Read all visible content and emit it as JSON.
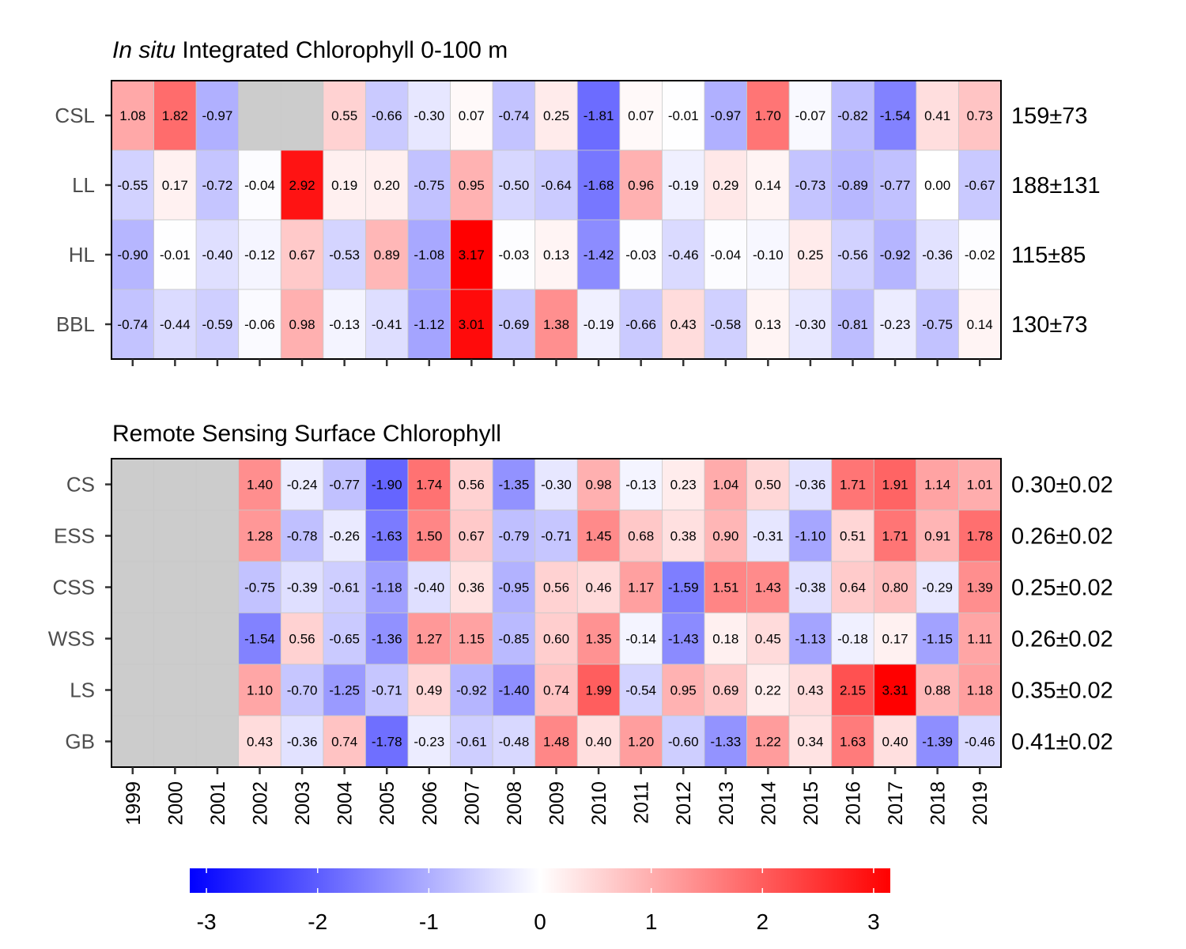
{
  "chart_data": [
    {
      "type": "heatmap",
      "title_italic": "In situ",
      "title_rest": " Integrated Chlorophyll 0-100 m",
      "x": [
        "1999",
        "2000",
        "2001",
        "2002",
        "2003",
        "2004",
        "2005",
        "2006",
        "2007",
        "2008",
        "2009",
        "2010",
        "2011",
        "2012",
        "2013",
        "2014",
        "2015",
        "2016",
        "2017",
        "2018",
        "2019"
      ],
      "rows": [
        {
          "name": "CSL",
          "mean": "159±73",
          "values": [
            1.08,
            1.82,
            -0.97,
            null,
            null,
            0.55,
            -0.66,
            -0.3,
            0.07,
            -0.74,
            0.25,
            -1.81,
            0.07,
            -0.01,
            -0.97,
            1.7,
            -0.07,
            -0.82,
            -1.54,
            0.41,
            0.73
          ]
        },
        {
          "name": "LL",
          "mean": "188±131",
          "values": [
            -0.55,
            0.17,
            -0.72,
            -0.04,
            2.92,
            0.19,
            0.2,
            -0.75,
            0.95,
            -0.5,
            -0.64,
            -1.68,
            0.96,
            -0.19,
            0.29,
            0.14,
            -0.73,
            -0.89,
            -0.77,
            0.0,
            -0.67
          ]
        },
        {
          "name": "HL",
          "mean": "115±85",
          "values": [
            -0.9,
            -0.01,
            -0.4,
            -0.12,
            0.67,
            -0.53,
            0.89,
            -1.08,
            3.17,
            -0.03,
            0.13,
            -1.42,
            -0.03,
            -0.46,
            -0.04,
            -0.1,
            0.25,
            -0.56,
            -0.92,
            -0.36,
            -0.02
          ]
        },
        {
          "name": "BBL",
          "mean": "130±73",
          "values": [
            -0.74,
            -0.44,
            -0.59,
            -0.06,
            0.98,
            -0.13,
            -0.41,
            -1.12,
            3.01,
            -0.69,
            1.38,
            -0.19,
            -0.66,
            0.43,
            -0.58,
            0.13,
            -0.3,
            -0.81,
            -0.23,
            -0.75,
            0.14
          ]
        }
      ],
      "show_year_labels": false
    },
    {
      "type": "heatmap",
      "title_italic": "",
      "title_rest": "Remote Sensing Surface Chlorophyll",
      "x": [
        "1999",
        "2000",
        "2001",
        "2002",
        "2003",
        "2004",
        "2005",
        "2006",
        "2007",
        "2008",
        "2009",
        "2010",
        "2011",
        "2012",
        "2013",
        "2014",
        "2015",
        "2016",
        "2017",
        "2018",
        "2019"
      ],
      "rows": [
        {
          "name": "CS",
          "mean": "0.30±0.02",
          "values": [
            null,
            null,
            null,
            1.4,
            -0.24,
            -0.77,
            -1.9,
            1.74,
            0.56,
            -1.35,
            -0.3,
            0.98,
            -0.13,
            0.23,
            1.04,
            0.5,
            -0.36,
            1.71,
            1.91,
            1.14,
            1.01
          ]
        },
        {
          "name": "ESS",
          "mean": "0.26±0.02",
          "values": [
            null,
            null,
            null,
            1.28,
            -0.78,
            -0.26,
            -1.63,
            1.5,
            0.67,
            -0.79,
            -0.71,
            1.45,
            0.68,
            0.38,
            0.9,
            -0.31,
            -1.1,
            0.51,
            1.71,
            0.91,
            1.78
          ]
        },
        {
          "name": "CSS",
          "mean": "0.25±0.02",
          "values": [
            null,
            null,
            null,
            -0.75,
            -0.39,
            -0.61,
            -1.18,
            -0.4,
            0.36,
            -0.95,
            0.56,
            0.46,
            1.17,
            -1.59,
            1.51,
            1.43,
            -0.38,
            0.64,
            0.8,
            -0.29,
            1.39
          ]
        },
        {
          "name": "WSS",
          "mean": "0.26±0.02",
          "values": [
            null,
            null,
            null,
            -1.54,
            0.56,
            -0.65,
            -1.36,
            1.27,
            1.15,
            -0.85,
            0.6,
            1.35,
            -0.14,
            -1.43,
            0.18,
            0.45,
            -1.13,
            -0.18,
            0.17,
            -1.15,
            1.11
          ]
        },
        {
          "name": "LS",
          "mean": "0.35±0.02",
          "values": [
            null,
            null,
            null,
            1.1,
            -0.7,
            -1.25,
            -0.71,
            0.49,
            -0.92,
            -1.4,
            0.74,
            1.99,
            -0.54,
            0.95,
            0.69,
            0.22,
            0.43,
            2.15,
            3.31,
            0.88,
            1.18
          ]
        },
        {
          "name": "GB",
          "mean": "0.41±0.02",
          "values": [
            null,
            null,
            null,
            0.43,
            -0.36,
            0.74,
            -1.78,
            -0.23,
            -0.61,
            -0.48,
            1.48,
            0.4,
            1.2,
            -0.6,
            -1.33,
            1.22,
            0.34,
            1.63,
            0.4,
            -1.39,
            -0.46
          ]
        }
      ],
      "show_year_labels": true
    }
  ],
  "colorbar": {
    "min": -3.15,
    "max": 3.15,
    "ticks": [
      "-3",
      "-2",
      "-1",
      "0",
      "1",
      "2",
      "3"
    ],
    "colors": {
      "low": "#0000ff",
      "mid": "#ffffff",
      "high": "#ff0000",
      "missing": "#cccccc"
    }
  }
}
